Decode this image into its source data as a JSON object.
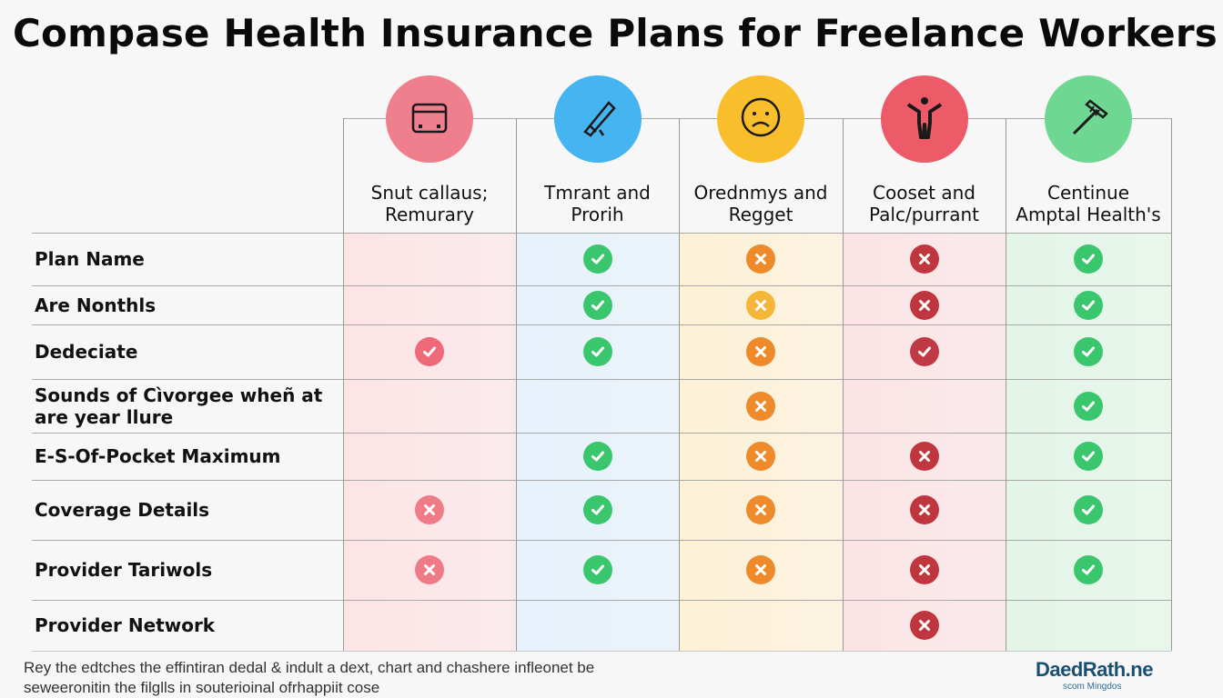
{
  "title": "Compase Health Insurance Plans for Freelance Workers",
  "columns": [
    {
      "line1": "Snut callaus;",
      "line2": "Remurary",
      "icon": "calendar-box-icon",
      "color": "#f07f8e",
      "tint": "#fde4e6"
    },
    {
      "line1": "Tmrant and",
      "line2": "Prorih",
      "icon": "pen-tool-icon",
      "color": "#45b4f0",
      "tint": "#e6f1fb"
    },
    {
      "line1": "Orednmys and",
      "line2": "Regget",
      "icon": "sad-face-icon",
      "color": "#f9be2c",
      "tint": "#fdf1d6"
    },
    {
      "line1": "Cooset and",
      "line2": "Palc/purrant",
      "icon": "person-arms-up-icon",
      "color": "#ed5b69",
      "tint": "#fce3e5"
    },
    {
      "line1": "Centinue",
      "line2": "Amptal Health's",
      "icon": "tools-icon",
      "color": "#6ed791",
      "tint": "#e2f5e7"
    }
  ],
  "rows": [
    {
      "line1": "Plan Name",
      "line2": "",
      "marks": [
        "",
        "check-green",
        "x-orange",
        "x-red",
        "check-green"
      ]
    },
    {
      "line1": "Are Nonthls",
      "line2": "",
      "marks": [
        "",
        "check-green",
        "x-yellow",
        "x-red",
        "check-green"
      ]
    },
    {
      "line1": "Dedeciate",
      "line2": "",
      "marks": [
        "check-pink",
        "check-green",
        "x-orange",
        "check-red",
        "check-green"
      ]
    },
    {
      "line1": "Sounds of Cìvorgee wheñ at",
      "line2": "are year llure",
      "marks": [
        "",
        "",
        "x-orange",
        "",
        "check-green"
      ]
    },
    {
      "line1": "E-S-Of-Pocket Maximum",
      "line2": "",
      "marks": [
        "",
        "check-green",
        "x-orange",
        "x-red",
        "check-green"
      ]
    },
    {
      "line1": "Coverage Details",
      "line2": "",
      "marks": [
        "x-pink",
        "check-green",
        "x-orange",
        "x-red",
        "check-green"
      ]
    },
    {
      "line1": "Provider Tariwols",
      "line2": "",
      "marks": [
        "x-pink",
        "check-green",
        "x-orange",
        "x-red",
        "check-green"
      ]
    },
    {
      "line1": "Provider Network",
      "line2": "",
      "marks": [
        "",
        "",
        "",
        "x-red",
        ""
      ]
    }
  ],
  "mark_colors": {
    "check-green": "#3ac66d",
    "check-pink": "#ee6a79",
    "check-red": "#bf3a45",
    "x-orange": "#ee8a2a",
    "x-yellow": "#f5b73a",
    "x-red": "#c0363f",
    "x-pink": "#ef7b86"
  },
  "footer": {
    "line1": "Rey the edtches the effintiran dedal & indult a dext, chart and chashere infleonet be",
    "line2": "seweeronitin the filglls in souterioinal ofrhappiit cose"
  },
  "logo": {
    "main": "DaedRath.ne",
    "sub": "scom Mingdos"
  }
}
